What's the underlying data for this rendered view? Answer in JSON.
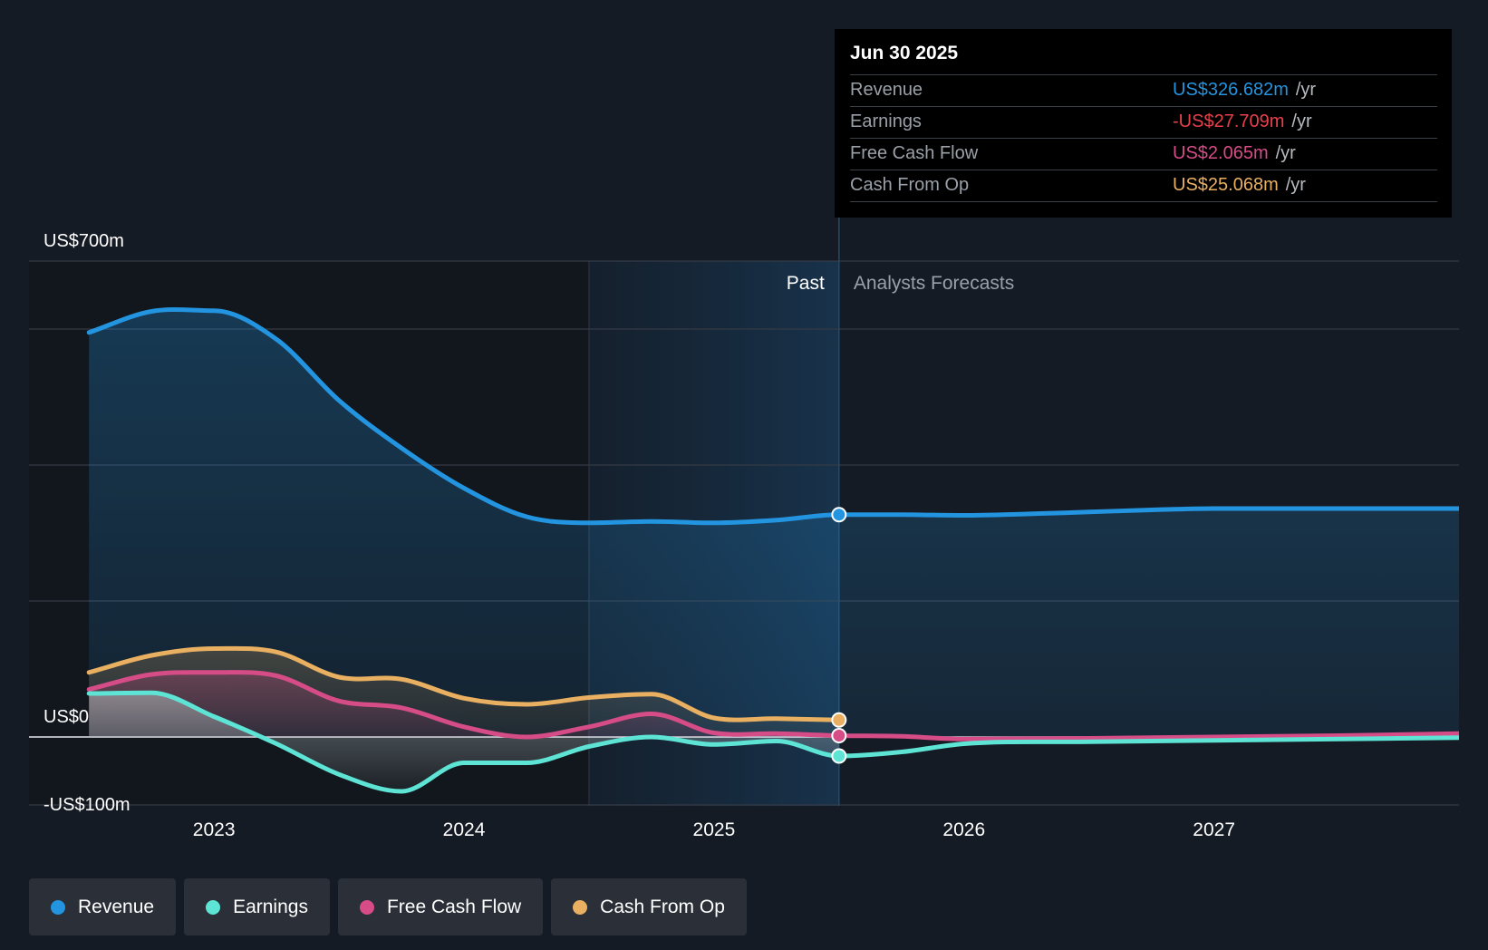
{
  "tooltip": {
    "date": "Jun 30 2025",
    "rows": [
      {
        "label": "Revenue",
        "value": "US$326.682m",
        "unit": "/yr",
        "color": "#2394df"
      },
      {
        "label": "Earnings",
        "value": "-US$27.709m",
        "unit": "/yr",
        "color": "#e8404a"
      },
      {
        "label": "Free Cash Flow",
        "value": "US$2.065m",
        "unit": "/yr",
        "color": "#d64c87"
      },
      {
        "label": "Cash From Op",
        "value": "US$25.068m",
        "unit": "/yr",
        "color": "#e9b062"
      }
    ]
  },
  "legend": [
    {
      "label": "Revenue",
      "color": "#2394df"
    },
    {
      "label": "Earnings",
      "color": "#5ee4d4"
    },
    {
      "label": "Free Cash Flow",
      "color": "#d64c87"
    },
    {
      "label": "Cash From Op",
      "color": "#e9b062"
    }
  ],
  "chart_data": {
    "type": "line",
    "title": "",
    "xlabel": "",
    "ylabel": "",
    "ylim": [
      -100,
      700
    ],
    "y_tick_labels": [
      {
        "value": 700,
        "label": "US$700m"
      },
      {
        "value": 0,
        "label": "US$0"
      },
      {
        "value": -100,
        "label": "-US$100m"
      }
    ],
    "y_gridlines": [
      700,
      600,
      400,
      200,
      0,
      -100
    ],
    "x_ticks": [
      {
        "value": 2023,
        "label": "2023"
      },
      {
        "value": 2024,
        "label": "2024"
      },
      {
        "value": 2025,
        "label": "2025"
      },
      {
        "value": 2026,
        "label": "2026"
      },
      {
        "value": 2027,
        "label": "2027"
      }
    ],
    "xlim": [
      2022.26,
      2027.98
    ],
    "past_label": "Past",
    "forecast_label": "Analysts Forecasts",
    "divider_x": 2025.5,
    "highlight_start_x": 2024.5,
    "series": [
      {
        "name": "Revenue",
        "color": "#2394df",
        "area": true,
        "x": [
          2022.5,
          2022.75,
          2023.0,
          2023.25,
          2023.5,
          2023.75,
          2024.0,
          2024.25,
          2024.5,
          2024.75,
          2025.0,
          2025.25,
          2025.5,
          2025.75,
          2026.0,
          2026.25,
          2026.5,
          2026.75,
          2027.0,
          2027.25,
          2027.5,
          2027.75,
          2027.98
        ],
        "values": [
          595,
          626,
          627,
          585,
          495,
          425,
          366,
          324,
          315,
          317,
          315,
          319,
          327,
          327,
          326,
          328,
          331,
          334,
          336,
          336,
          336,
          336,
          336
        ]
      },
      {
        "name": "Cash From Op",
        "color": "#e9b062",
        "area": true,
        "x": [
          2022.5,
          2022.75,
          2023.0,
          2023.25,
          2023.5,
          2023.75,
          2024.0,
          2024.25,
          2024.5,
          2024.75,
          2025.0,
          2025.25,
          2025.5
        ],
        "values": [
          95,
          120,
          130,
          125,
          88,
          85,
          57,
          48,
          58,
          63,
          28,
          27,
          25
        ]
      },
      {
        "name": "Free Cash Flow",
        "color": "#d64c87",
        "area": true,
        "x": [
          2022.5,
          2022.75,
          2023.0,
          2023.25,
          2023.5,
          2023.75,
          2024.0,
          2024.25,
          2024.5,
          2024.75,
          2025.0,
          2025.25,
          2025.5,
          2025.75,
          2026.0,
          2026.5,
          2027.0,
          2027.5,
          2027.98
        ],
        "values": [
          70,
          92,
          95,
          90,
          53,
          43,
          15,
          0,
          15,
          34,
          6,
          5,
          2,
          1,
          -3,
          -2,
          0,
          2,
          5
        ]
      },
      {
        "name": "Earnings",
        "color": "#5ee4d4",
        "area": true,
        "x": [
          2022.5,
          2022.75,
          2023.0,
          2023.25,
          2023.5,
          2023.75,
          2024.0,
          2024.25,
          2024.5,
          2024.75,
          2025.0,
          2025.25,
          2025.5,
          2025.75,
          2026.0,
          2026.5,
          2027.0,
          2027.5,
          2027.98
        ],
        "values": [
          64,
          65,
          30,
          -10,
          -55,
          -80,
          -38,
          -38,
          -14,
          0,
          -11,
          -6,
          -28,
          -22,
          -10,
          -7,
          -5,
          -3,
          -1
        ]
      }
    ],
    "highlight_point_x": 2025.5
  }
}
